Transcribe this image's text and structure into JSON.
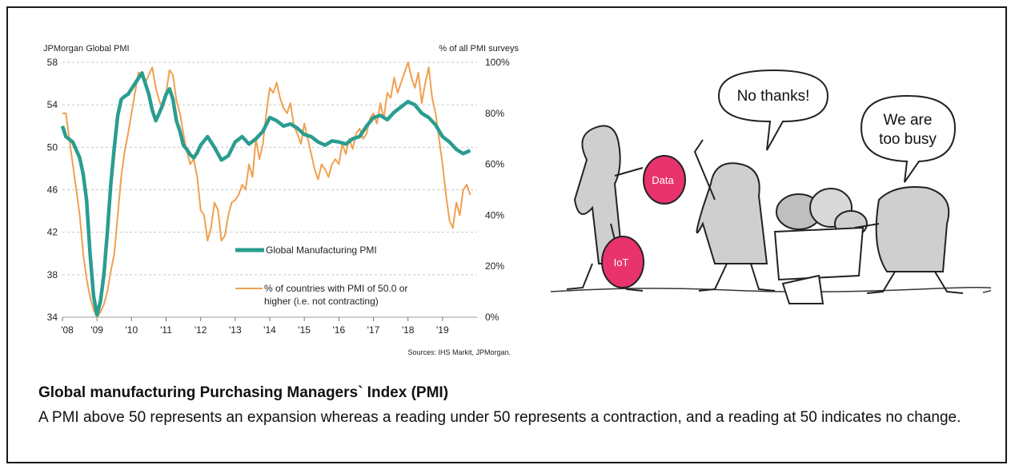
{
  "chart_data": {
    "type": "line",
    "left_axis_label": "JPMorgan Global PMI",
    "right_axis_label": "% of all PMI surveys",
    "left_ticks": [
      "58",
      "54",
      "50",
      "46",
      "42",
      "38",
      "34"
    ],
    "right_ticks": [
      "100%",
      "80%",
      "60%",
      "40%",
      "20%",
      "0%"
    ],
    "x_ticks": [
      "'08",
      "'09",
      "'10",
      "'11",
      "'12",
      "'13",
      "'14",
      "'15",
      "'16",
      "'17",
      "'18",
      "'19"
    ],
    "ylim_left": [
      34,
      58
    ],
    "ylim_right": [
      0,
      100
    ],
    "grid": true,
    "source": "Sources: IHS Markit, JPMorgan.",
    "series": [
      {
        "name": "Global Manufacturing PMI",
        "axis": "left",
        "color": "#2a9d8f",
        "x": [
          2008.0,
          2008.1,
          2008.3,
          2008.5,
          2008.6,
          2008.7,
          2008.8,
          2008.9,
          2009.0,
          2009.1,
          2009.2,
          2009.3,
          2009.4,
          2009.5,
          2009.6,
          2009.7,
          2009.8,
          2009.9,
          2010.0,
          2010.1,
          2010.2,
          2010.3,
          2010.4,
          2010.5,
          2010.6,
          2010.7,
          2010.8,
          2010.9,
          2011.0,
          2011.1,
          2011.2,
          2011.3,
          2011.4,
          2011.5,
          2011.6,
          2011.7,
          2011.8,
          2011.9,
          2012.0,
          2012.2,
          2012.4,
          2012.6,
          2012.8,
          2013.0,
          2013.2,
          2013.4,
          2013.6,
          2013.8,
          2014.0,
          2014.2,
          2014.4,
          2014.6,
          2014.8,
          2015.0,
          2015.2,
          2015.4,
          2015.6,
          2015.8,
          2016.0,
          2016.2,
          2016.4,
          2016.6,
          2016.8,
          2017.0,
          2017.2,
          2017.4,
          2017.6,
          2017.8,
          2018.0,
          2018.2,
          2018.4,
          2018.6,
          2018.8,
          2019.0,
          2019.2,
          2019.4,
          2019.6,
          2019.8
        ],
        "values": [
          52.0,
          51.0,
          50.5,
          49.0,
          47.5,
          45.0,
          40.0,
          36.0,
          34.2,
          35.5,
          38.0,
          42.0,
          46.5,
          50.0,
          53.0,
          54.5,
          54.8,
          55.0,
          55.5,
          56.0,
          56.5,
          57.0,
          56.0,
          55.0,
          53.5,
          52.5,
          53.2,
          54.0,
          55.0,
          55.5,
          54.5,
          52.5,
          51.5,
          50.2,
          49.8,
          49.3,
          49.0,
          49.5,
          50.2,
          51.0,
          50.0,
          48.8,
          49.2,
          50.5,
          51.0,
          50.3,
          50.8,
          51.5,
          52.8,
          52.5,
          52.0,
          52.2,
          51.8,
          51.2,
          51.0,
          50.5,
          50.2,
          50.6,
          50.5,
          50.3,
          50.8,
          51.0,
          52.0,
          52.8,
          53.0,
          52.6,
          53.3,
          53.8,
          54.3,
          54.0,
          53.2,
          52.8,
          52.1,
          51.0,
          50.5,
          49.8,
          49.4,
          49.7
        ]
      },
      {
        "name": "% of countries with PMI of 50.0 or higher (i.e. not contracting)",
        "axis": "right",
        "color": "#f0a050",
        "x": [
          2008.0,
          2008.1,
          2008.2,
          2008.3,
          2008.4,
          2008.5,
          2008.6,
          2008.7,
          2008.8,
          2008.9,
          2009.0,
          2009.1,
          2009.2,
          2009.3,
          2009.4,
          2009.5,
          2009.6,
          2009.7,
          2009.8,
          2009.9,
          2010.0,
          2010.1,
          2010.2,
          2010.3,
          2010.4,
          2010.5,
          2010.6,
          2010.7,
          2010.8,
          2010.9,
          2011.0,
          2011.1,
          2011.2,
          2011.3,
          2011.4,
          2011.5,
          2011.6,
          2011.7,
          2011.8,
          2011.9,
          2012.0,
          2012.1,
          2012.2,
          2012.3,
          2012.4,
          2012.5,
          2012.6,
          2012.7,
          2012.8,
          2012.9,
          2013.0,
          2013.1,
          2013.2,
          2013.3,
          2013.4,
          2013.5,
          2013.6,
          2013.7,
          2013.8,
          2013.9,
          2014.0,
          2014.1,
          2014.2,
          2014.3,
          2014.4,
          2014.5,
          2014.6,
          2014.7,
          2014.8,
          2014.9,
          2015.0,
          2015.1,
          2015.2,
          2015.3,
          2015.4,
          2015.5,
          2015.6,
          2015.7,
          2015.8,
          2015.9,
          2016.0,
          2016.1,
          2016.2,
          2016.3,
          2016.4,
          2016.5,
          2016.6,
          2016.7,
          2016.8,
          2016.9,
          2017.0,
          2017.1,
          2017.2,
          2017.3,
          2017.4,
          2017.5,
          2017.6,
          2017.7,
          2017.8,
          2017.9,
          2018.0,
          2018.1,
          2018.2,
          2018.3,
          2018.4,
          2018.5,
          2018.6,
          2018.7,
          2018.8,
          2018.9,
          2019.0,
          2019.1,
          2019.2,
          2019.3,
          2019.4,
          2019.5,
          2019.6,
          2019.7,
          2019.8
        ],
        "values": [
          80,
          80,
          70,
          60,
          50,
          40,
          25,
          15,
          8,
          3,
          0,
          2,
          5,
          10,
          18,
          25,
          40,
          55,
          65,
          72,
          80,
          88,
          96,
          95,
          92,
          95,
          98,
          90,
          85,
          82,
          88,
          97,
          95,
          85,
          80,
          72,
          65,
          60,
          62,
          55,
          42,
          40,
          30,
          35,
          45,
          42,
          30,
          32,
          40,
          45,
          46,
          48,
          52,
          50,
          60,
          55,
          70,
          62,
          68,
          80,
          90,
          88,
          92,
          86,
          82,
          80,
          84,
          75,
          72,
          68,
          76,
          70,
          64,
          58,
          54,
          60,
          58,
          55,
          60,
          62,
          60,
          68,
          64,
          70,
          66,
          72,
          74,
          70,
          72,
          78,
          80,
          76,
          84,
          78,
          88,
          86,
          94,
          88,
          92,
          96,
          100,
          94,
          90,
          96,
          84,
          92,
          98,
          86,
          80,
          70,
          60,
          48,
          38,
          35,
          45,
          40,
          50,
          52,
          48
        ]
      }
    ]
  },
  "cartoon": {
    "bubble_1": "No thanks!",
    "bubble_2_line1": "We are",
    "bubble_2_line2": "too busy",
    "disc_data": "Data",
    "disc_iot": "IoT"
  },
  "caption": {
    "title": "Global manufacturing Purchasing Managers` Index (PMI)",
    "body": "A PMI above 50 represents an expansion whereas a reading under 50 represents a contraction, and a reading at 50 indicates no change."
  }
}
